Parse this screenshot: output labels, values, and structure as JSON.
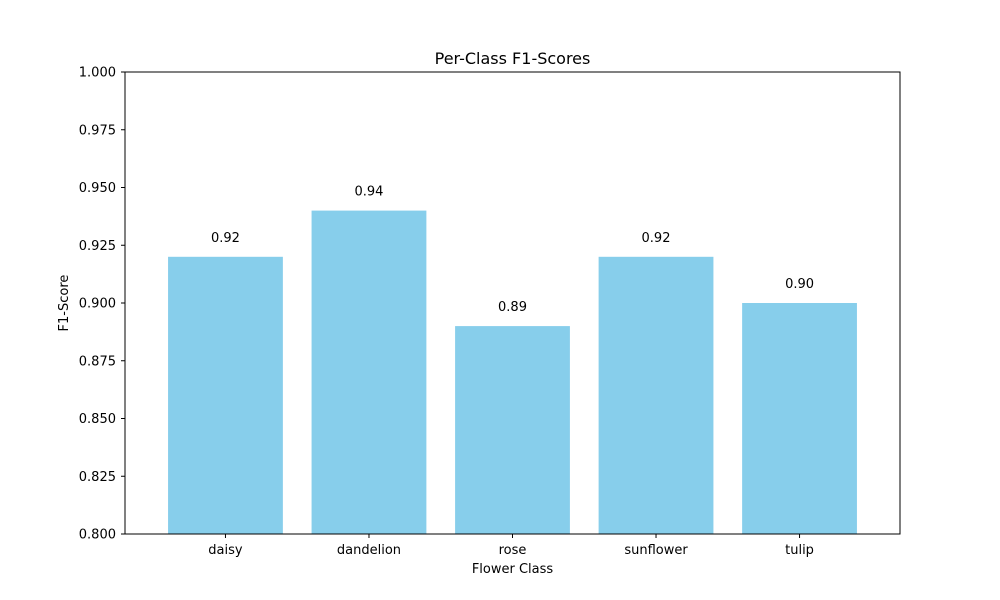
{
  "chart_data": {
    "type": "bar",
    "title": "Per-Class F1-Scores",
    "xlabel": "Flower Class",
    "ylabel": "F1-Score",
    "categories": [
      "daisy",
      "dandelion",
      "rose",
      "sunflower",
      "tulip"
    ],
    "values": [
      0.92,
      0.94,
      0.89,
      0.92,
      0.9
    ],
    "value_labels": [
      "0.92",
      "0.94",
      "0.89",
      "0.92",
      "0.90"
    ],
    "ylim": [
      0.8,
      1.0
    ],
    "yticks": [
      0.8,
      0.825,
      0.85,
      0.875,
      0.9,
      0.925,
      0.95,
      0.975,
      1.0
    ],
    "ytick_labels": [
      "0.800",
      "0.825",
      "0.850",
      "0.875",
      "0.900",
      "0.925",
      "0.950",
      "0.975",
      "1.000"
    ],
    "bar_color": "#87ceeb",
    "grid": false,
    "legend": "none"
  }
}
